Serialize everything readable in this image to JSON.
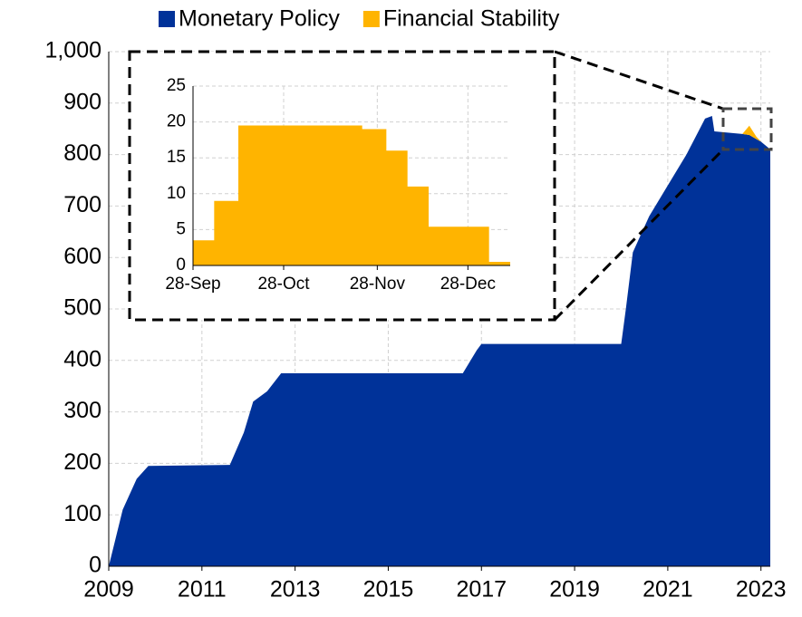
{
  "chart_data": [
    {
      "type": "area",
      "stacked": true,
      "legend": "top",
      "grid": true,
      "x": [
        2009.0,
        2009.3,
        2009.6,
        2009.85,
        2011.6,
        2011.9,
        2012.1,
        2012.4,
        2012.7,
        2016.6,
        2016.9,
        2017.0,
        2020.0,
        2020.1,
        2020.25,
        2020.6,
        2021.0,
        2021.4,
        2021.8,
        2021.95,
        2022.0,
        2022.6,
        2022.75,
        2022.9,
        2023.0,
        2023.2
      ],
      "series": [
        {
          "name": "Monetary Policy",
          "color": "#003299",
          "values": [
            0,
            110,
            170,
            195,
            197,
            260,
            320,
            340,
            375,
            375,
            420,
            432,
            432,
            500,
            610,
            680,
            740,
            800,
            870,
            875,
            845,
            840,
            838,
            830,
            825,
            810
          ]
        },
        {
          "name": "Financial Stability",
          "color": "#FFB400",
          "values": [
            0,
            0,
            0,
            0,
            0,
            0,
            0,
            0,
            0,
            0,
            0,
            0,
            0,
            0,
            0,
            0,
            0,
            0,
            0,
            0,
            0,
            0,
            18,
            5,
            0,
            0
          ]
        }
      ],
      "xlim": [
        2009,
        2023.2
      ],
      "xticks": [
        2009,
        2011,
        2013,
        2015,
        2017,
        2019,
        2021,
        2023
      ],
      "ylim": [
        0,
        1000
      ],
      "yticks": [
        0,
        100,
        200,
        300,
        400,
        500,
        600,
        700,
        800,
        900,
        {
          "value": 1000,
          "label": "1,000"
        }
      ]
    },
    {
      "type": "area",
      "grid": true,
      "x": [
        0,
        7,
        7,
        15,
        15,
        56,
        56,
        64,
        64,
        71,
        71,
        78,
        78,
        98,
        98,
        105
      ],
      "series": [
        {
          "color": "#FFB400",
          "values": [
            3.5,
            3.5,
            9,
            9,
            19.5,
            19.5,
            19,
            19,
            16,
            16,
            11,
            11,
            5.4,
            5.4,
            0.5,
            0.5
          ]
        }
      ],
      "xlim": [
        0,
        105
      ],
      "xticks": [
        {
          "value": 0,
          "label": "28-Sep"
        },
        {
          "value": 30,
          "label": "28-Oct"
        },
        {
          "value": 61,
          "label": "28-Nov"
        },
        {
          "value": 91,
          "label": "28-Dec"
        }
      ],
      "ylim": [
        0,
        25
      ],
      "yticks": [
        0,
        5,
        10,
        15,
        20,
        25
      ]
    }
  ]
}
